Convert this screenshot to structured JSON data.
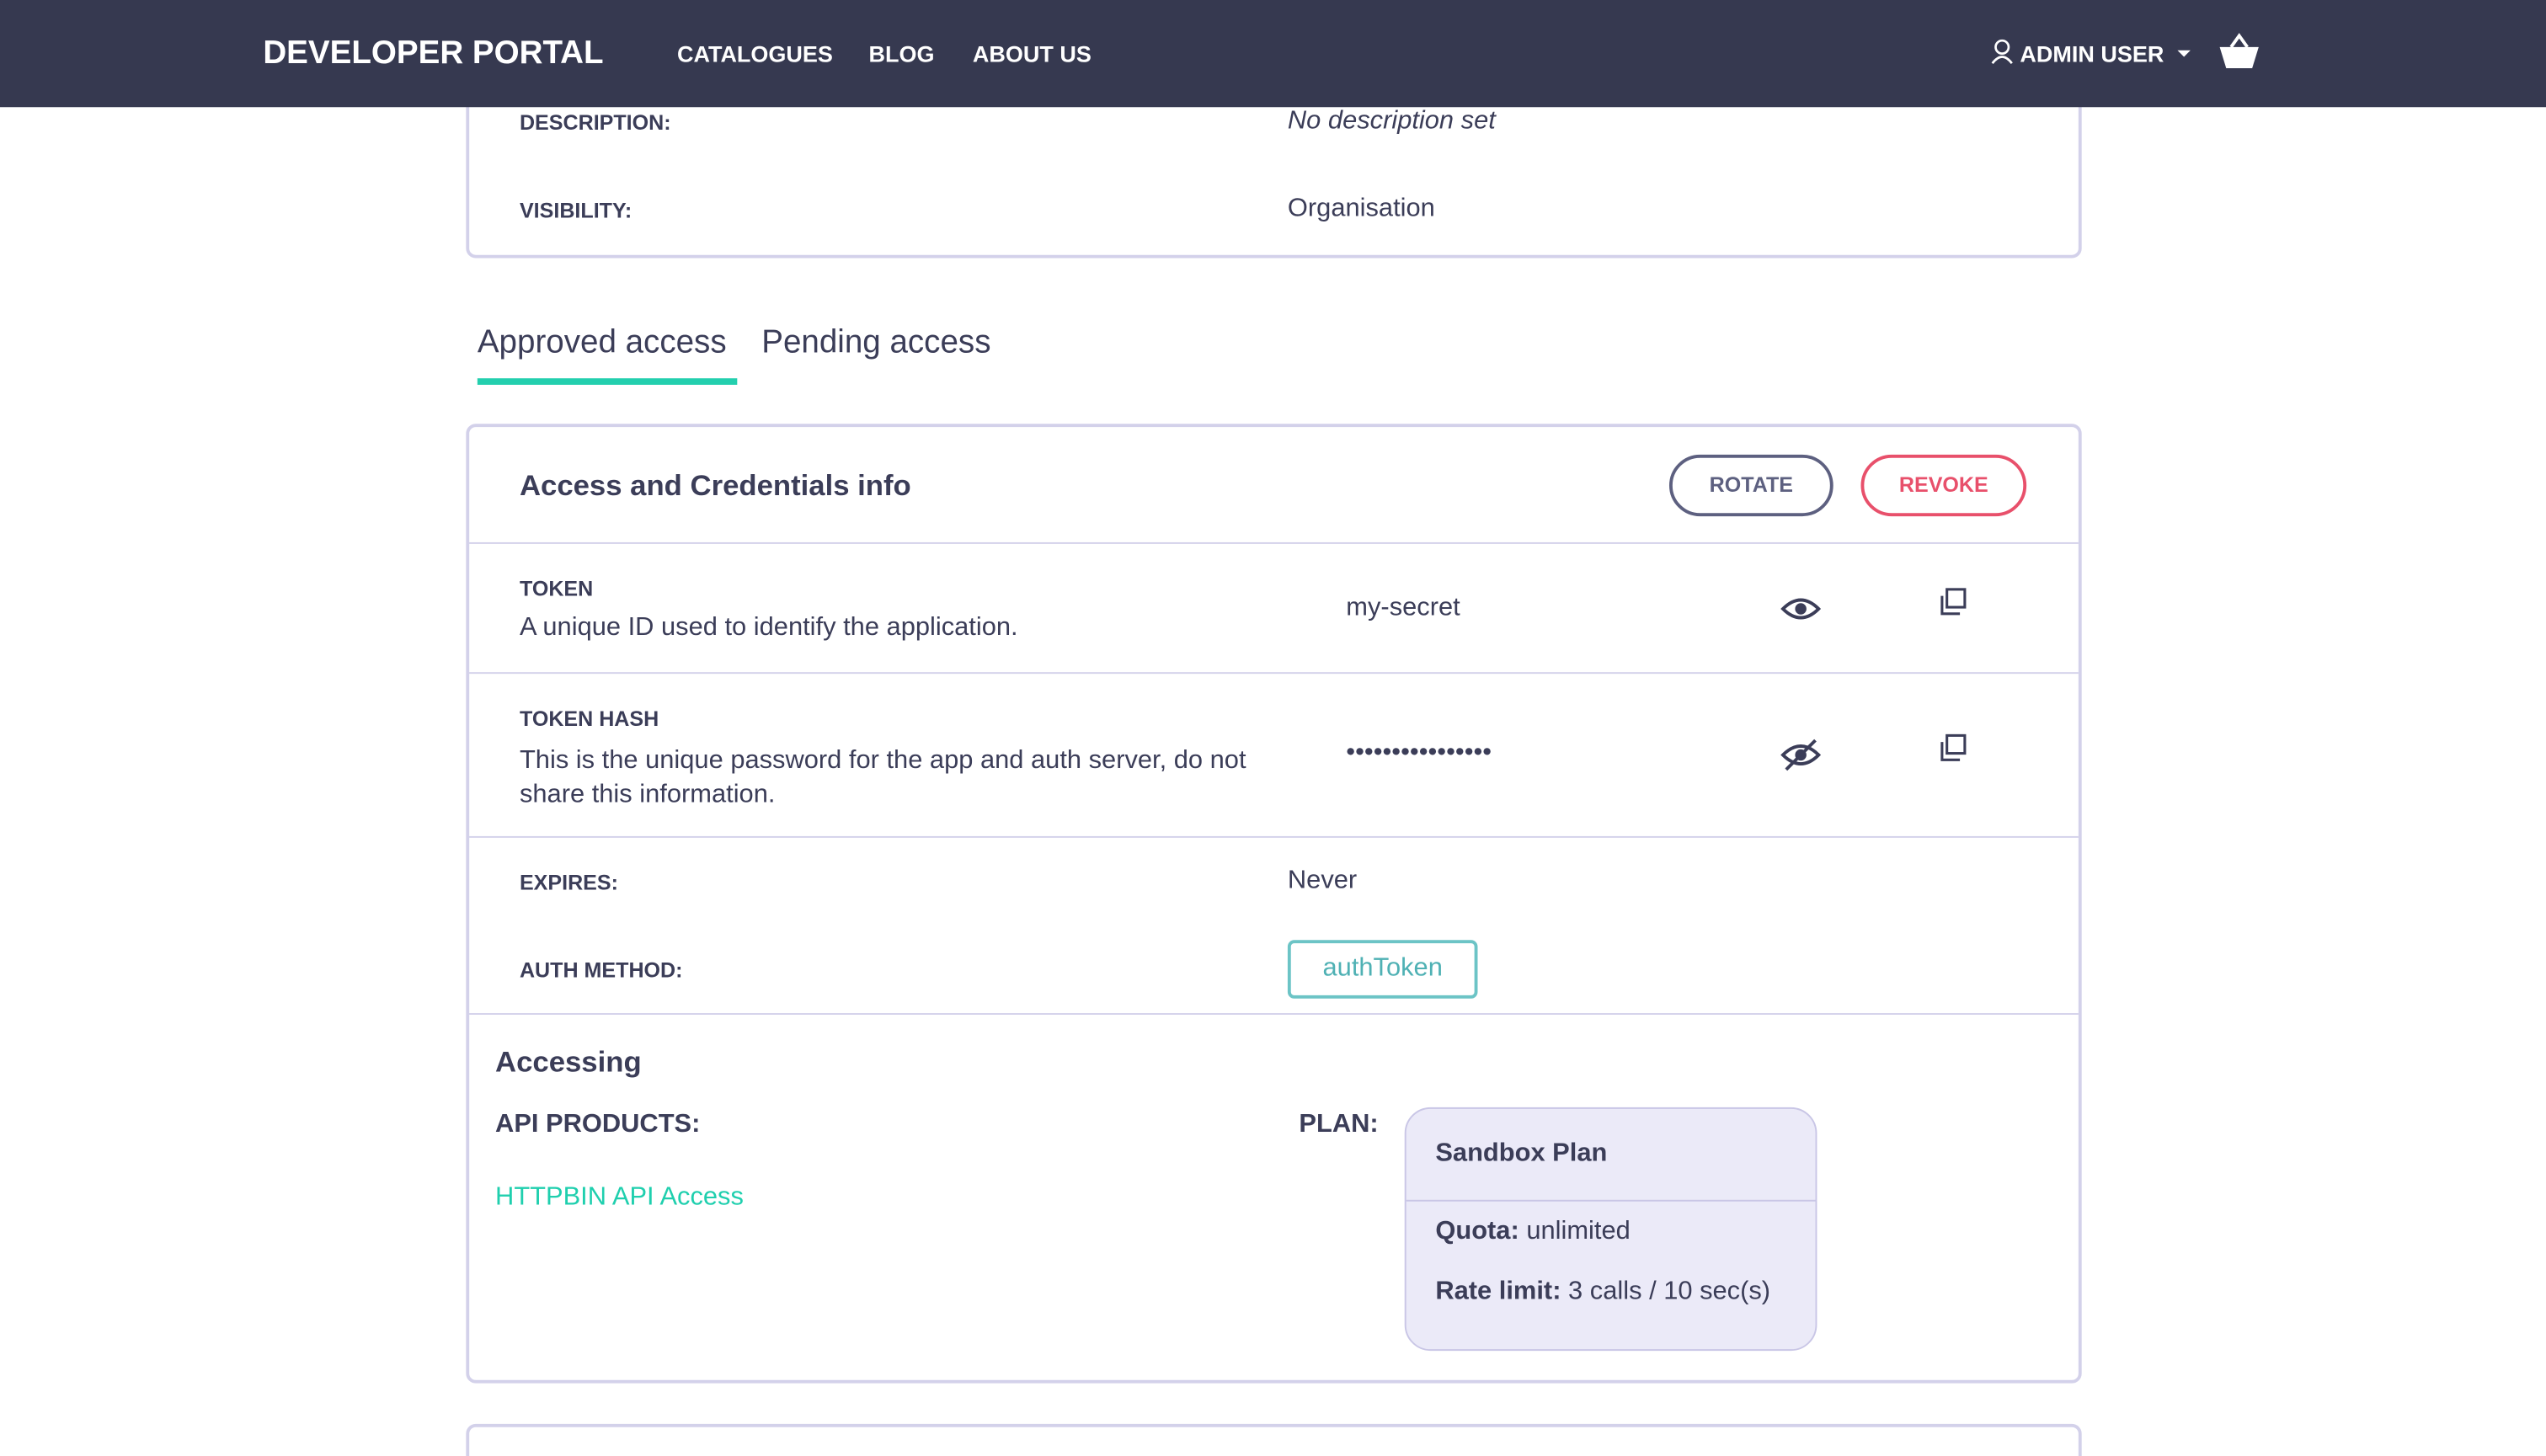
{
  "nav": {
    "brand": "DEVELOPER PORTAL",
    "links": [
      "CATALOGUES",
      "BLOG",
      "ABOUT US"
    ],
    "user": "ADMIN USER"
  },
  "app_details": {
    "rows": [
      {
        "label": "DESCRIPTION:",
        "value": "No description set"
      },
      {
        "label": "VISIBILITY:",
        "value": "Organisation"
      }
    ]
  },
  "tabs": [
    "Approved access",
    "Pending access"
  ],
  "credentials": {
    "title": "Access and Credentials info",
    "buttons": [
      "ROTATE",
      "REVOKE"
    ],
    "token": {
      "label": "TOKEN",
      "description": "A unique ID used to identify the application.",
      "value": "my-secret"
    },
    "token_hash": {
      "label": "TOKEN HASH",
      "description": "This is the unique password for the app and auth server, do not share this information.",
      "value": "••••••••••••••••"
    },
    "expires": {
      "label": "EXPIRES:",
      "value": "Never"
    },
    "auth_method": {
      "label": "AUTH METHOD:",
      "value": "authToken"
    }
  },
  "accessing": {
    "title": "Accessing",
    "api_products_label": "API PRODUCTS:",
    "api_products": [
      "HTTPBIN API Access"
    ],
    "plan_label": "PLAN:",
    "plan": {
      "name": "Sandbox Plan",
      "quota_label": "Quota:",
      "quota": "unlimited",
      "rate_limit_label": "Rate limit:",
      "rate_limit": "3 calls / 10 sec(s)"
    }
  }
}
